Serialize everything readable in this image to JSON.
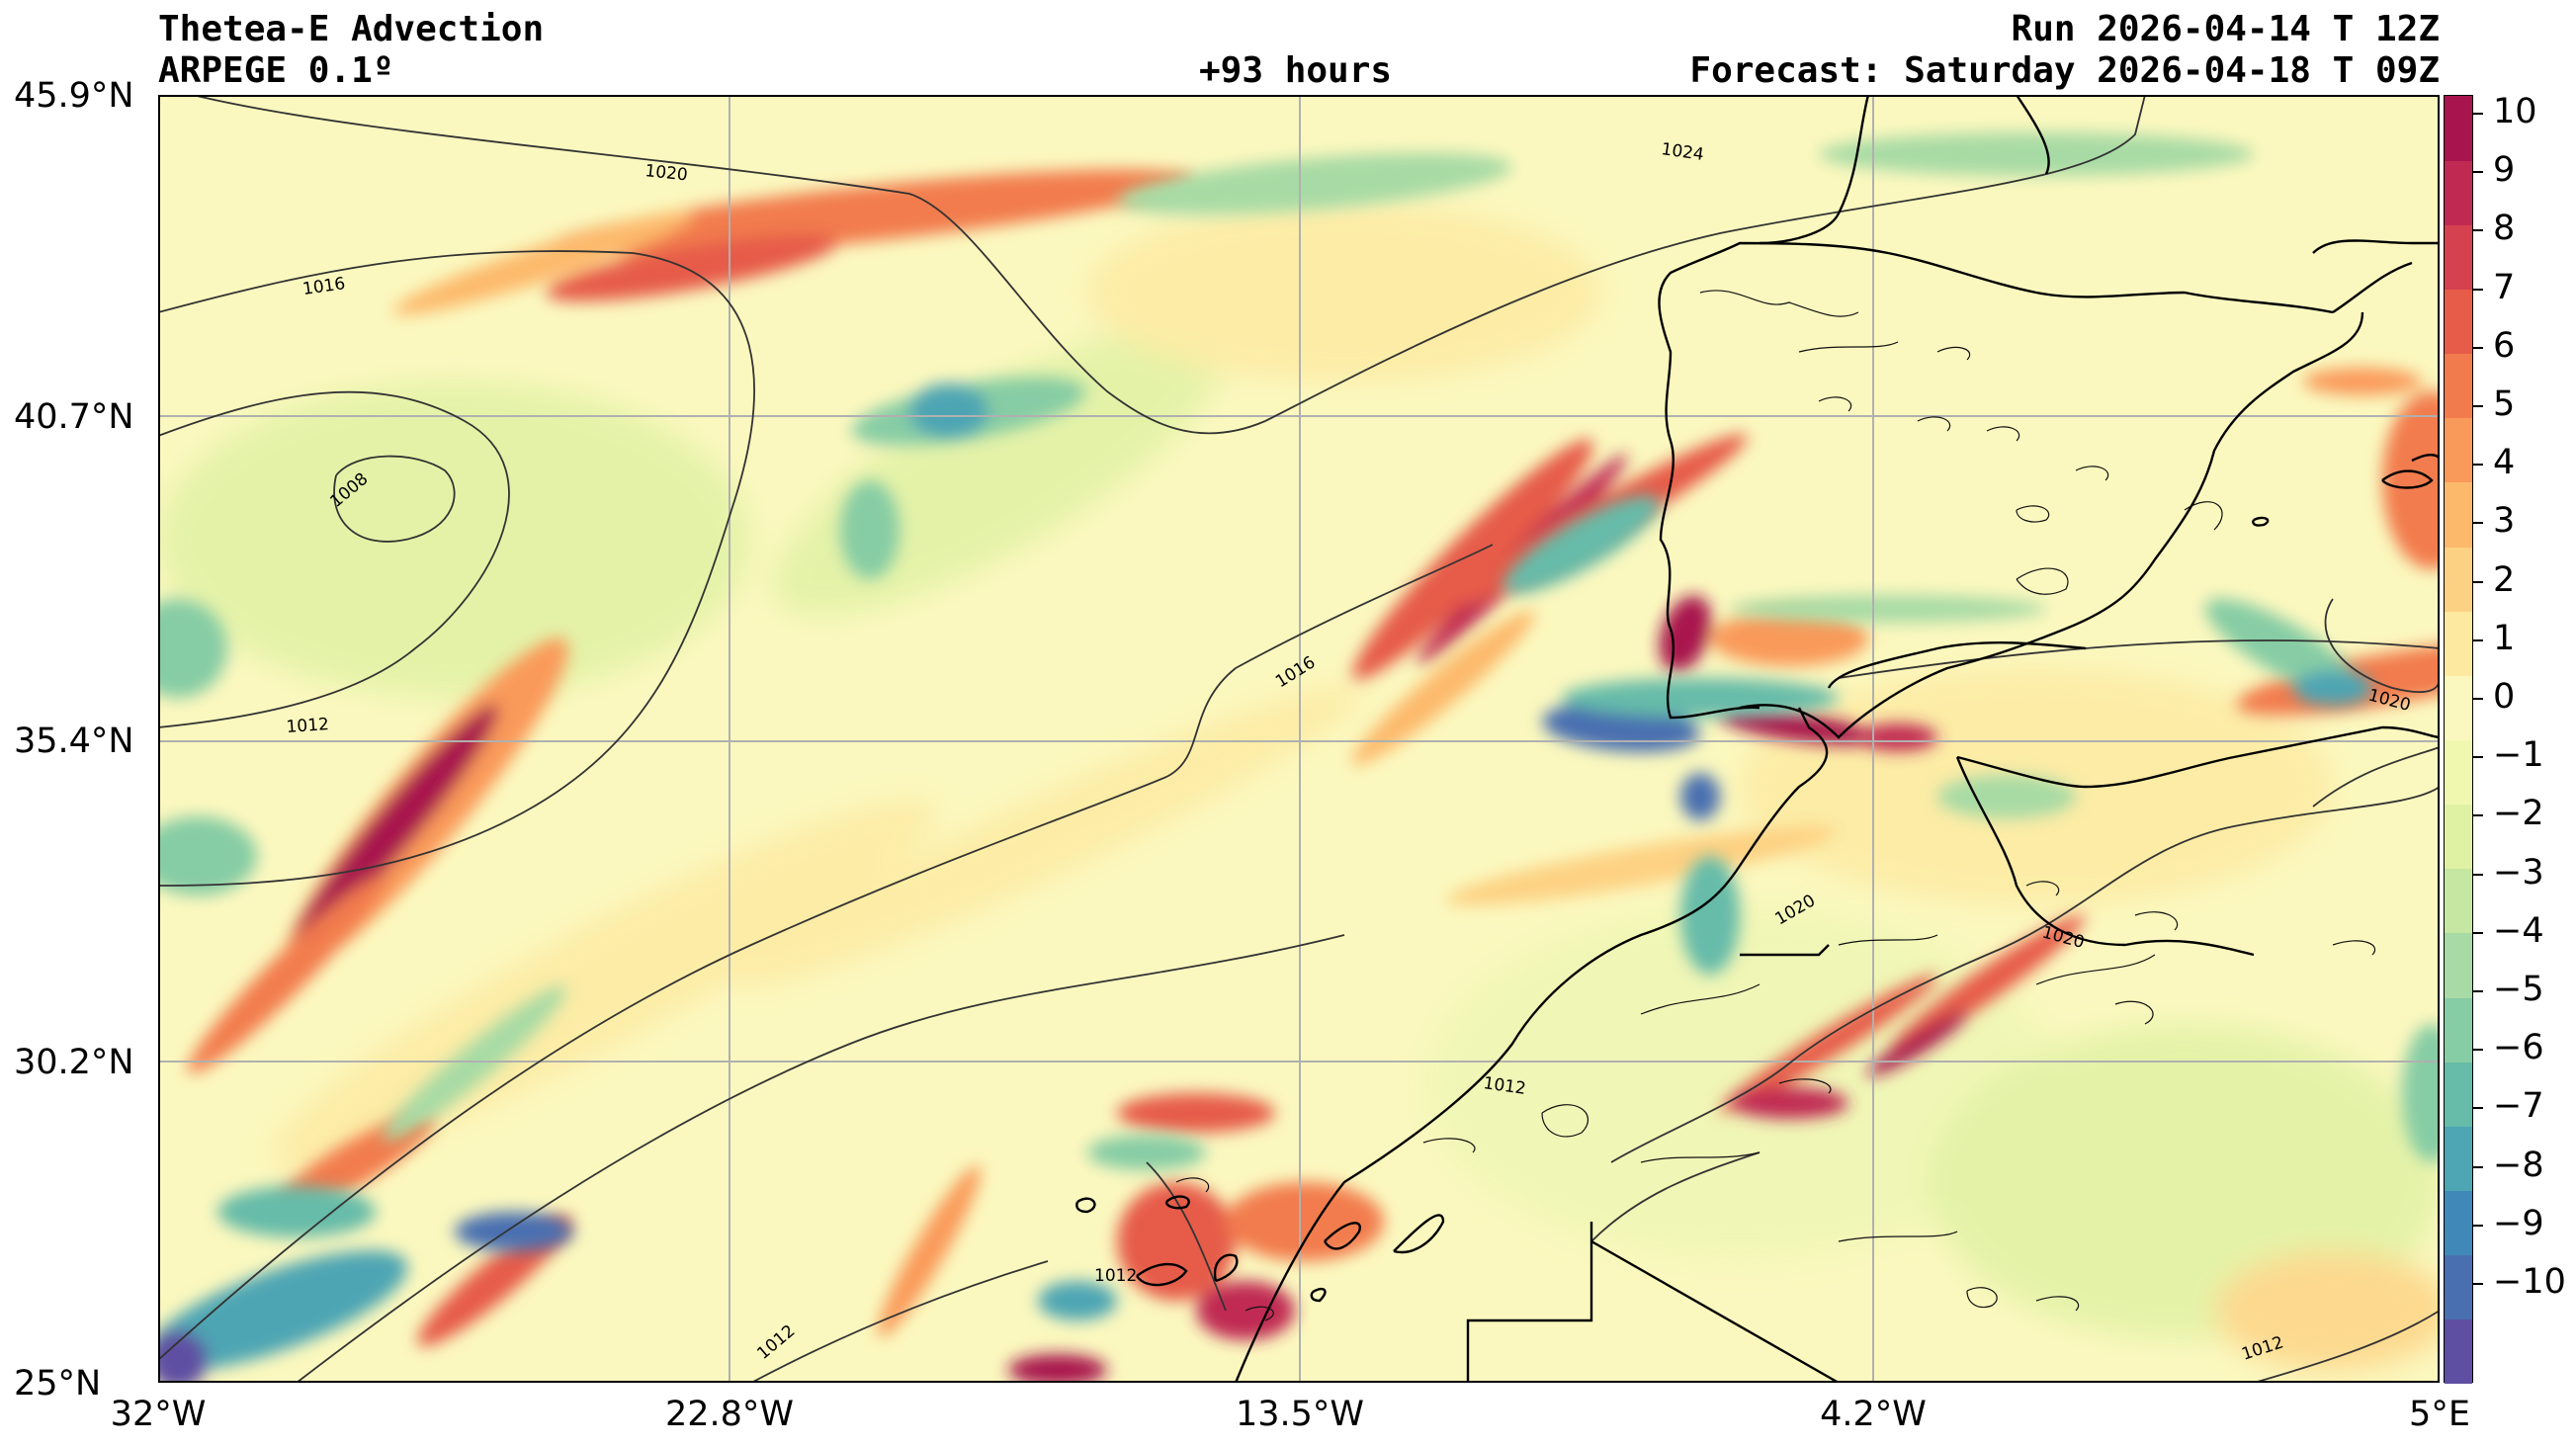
{
  "header": {
    "product": "Thetea-E Advection",
    "model": "ARPEGE 0.1º",
    "lead_time": "+93 hours",
    "run": "Run 2026-04-14 T 12Z",
    "forecast": "Forecast: Saturday 2026-04-18 T 09Z"
  },
  "map": {
    "lat_ticks": [
      "45.9°N",
      "40.7°N",
      "35.4°N",
      "30.2°N",
      "25°N"
    ],
    "lon_ticks": [
      "32°W",
      "22.8°W",
      "13.5°W",
      "4.2°W",
      "5°E"
    ],
    "isobar_labels": {
      "l1020a": "1020",
      "l1024": "1024",
      "l1016a": "1016",
      "l1008": "1008",
      "l1012a": "1012",
      "l1016b": "1016",
      "l1020b": "1020",
      "l1020c": "1020",
      "l1020d": "1020",
      "l1012b": "1012",
      "l1012c": "1012",
      "l1012d": "1012",
      "l1012e": "1012"
    }
  },
  "colorbar": {
    "ticks": [
      "10",
      "9",
      "8",
      "7",
      "6",
      "5",
      "4",
      "3",
      "2",
      "1",
      "0",
      "−1",
      "−2",
      "−3",
      "−4",
      "−5",
      "−6",
      "−7",
      "−8",
      "−9",
      "−10"
    ],
    "colors": [
      "#5e4fa2",
      "#4a6fb0",
      "#3f88b8",
      "#4ea5b3",
      "#66bba9",
      "#86cca4",
      "#a7daa4",
      "#c6e7a1",
      "#dff1a3",
      "#f0f8b0",
      "#fbf8bf",
      "#fde9a0",
      "#fdd183",
      "#fcb96c",
      "#f99a5a",
      "#f27b4e",
      "#e65c49",
      "#d5414e",
      "#c02a52",
      "#a8144d"
    ]
  },
  "colors": {
    "background": "#fbf8bf",
    "positive_strong": "#a8144d",
    "negative_strong": "#4a6fb0"
  }
}
